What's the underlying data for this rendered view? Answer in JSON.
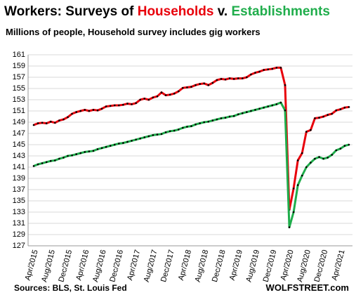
{
  "chart_data": {
    "type": "line",
    "title_parts": [
      {
        "text": "Workers: Surveys of ",
        "color": "#000000"
      },
      {
        "text": "Households",
        "color": "#e8000b"
      },
      {
        "text": " v. ",
        "color": "#000000"
      },
      {
        "text": "Establishments",
        "color": "#1fad4b"
      }
    ],
    "subtitle": "Millions of people, Household survey includes gig workers",
    "source": "Sources: BLS, St. Louis Fed",
    "credit": "WOLFSTREET.com",
    "categories": [
      "Apr/2015",
      null,
      null,
      null,
      "Aug/2015",
      null,
      null,
      null,
      "Dec/2015",
      null,
      null,
      null,
      "Apr/2016",
      null,
      null,
      null,
      "Aug/2016",
      null,
      null,
      null,
      "Dec/2016",
      null,
      null,
      null,
      "Apr/2017",
      null,
      null,
      null,
      "Aug/2017",
      null,
      null,
      null,
      "Dec/2017",
      null,
      null,
      null,
      "Apr/2018",
      null,
      null,
      null,
      "Aug/2018",
      null,
      null,
      null,
      "Dec/2018",
      null,
      null,
      null,
      "Apr/2019",
      null,
      null,
      null,
      "Aug/2019",
      null,
      null,
      null,
      "Dec/2019",
      null,
      null,
      null,
      "Apr/2020",
      null,
      null,
      null,
      "Aug/2020",
      null,
      null,
      null,
      "Dec/2020",
      null,
      null,
      null,
      "Apr/2021",
      null,
      null
    ],
    "series": [
      {
        "name": "Households",
        "color": "#e8000b",
        "values": [
          148.5,
          148.8,
          148.9,
          148.8,
          149.1,
          148.9,
          149.3,
          149.5,
          149.9,
          150.5,
          150.8,
          151.0,
          151.2,
          151.0,
          151.2,
          151.1,
          151.4,
          151.8,
          151.9,
          152.0,
          152.0,
          152.1,
          152.3,
          152.2,
          152.4,
          153.0,
          153.2,
          153.0,
          153.4,
          153.6,
          154.3,
          153.8,
          153.9,
          154.1,
          154.5,
          155.1,
          155.2,
          155.3,
          155.6,
          155.8,
          155.9,
          155.6,
          156.0,
          156.5,
          156.7,
          156.6,
          156.8,
          156.7,
          156.8,
          156.8,
          157.0,
          157.5,
          157.8,
          158.0,
          158.3,
          158.4,
          158.5,
          158.7,
          158.7,
          155.6,
          133.4,
          137.2,
          142.2,
          143.5,
          147.3,
          147.6,
          149.7,
          149.8,
          150.0,
          150.3,
          150.5,
          151.1,
          151.3,
          151.6,
          151.7
        ]
      },
      {
        "name": "Establishments",
        "color": "#1fad4b",
        "values": [
          141.2,
          141.5,
          141.7,
          141.9,
          142.1,
          142.2,
          142.5,
          142.7,
          143.0,
          143.1,
          143.3,
          143.5,
          143.7,
          143.8,
          143.9,
          144.2,
          144.4,
          144.6,
          144.8,
          145.0,
          145.2,
          145.3,
          145.5,
          145.7,
          145.9,
          146.1,
          146.3,
          146.5,
          146.7,
          146.8,
          146.9,
          147.2,
          147.4,
          147.5,
          147.7,
          148.0,
          148.2,
          148.3,
          148.6,
          148.8,
          149.0,
          149.1,
          149.3,
          149.5,
          149.7,
          149.8,
          150.0,
          150.1,
          150.4,
          150.6,
          150.8,
          151.0,
          151.2,
          151.4,
          151.6,
          151.8,
          152.0,
          152.2,
          152.5,
          151.1,
          130.3,
          133.0,
          137.8,
          139.5,
          141.0,
          141.8,
          142.5,
          142.8,
          142.5,
          142.7,
          143.2,
          144.0,
          144.3,
          144.8,
          145.0
        ]
      }
    ],
    "marker_color": "#000000",
    "ylim": [
      127,
      161
    ],
    "yticks": [
      127,
      129,
      131,
      133,
      135,
      137,
      139,
      141,
      143,
      145,
      147,
      149,
      151,
      153,
      155,
      157,
      159,
      161
    ],
    "grid": true
  }
}
